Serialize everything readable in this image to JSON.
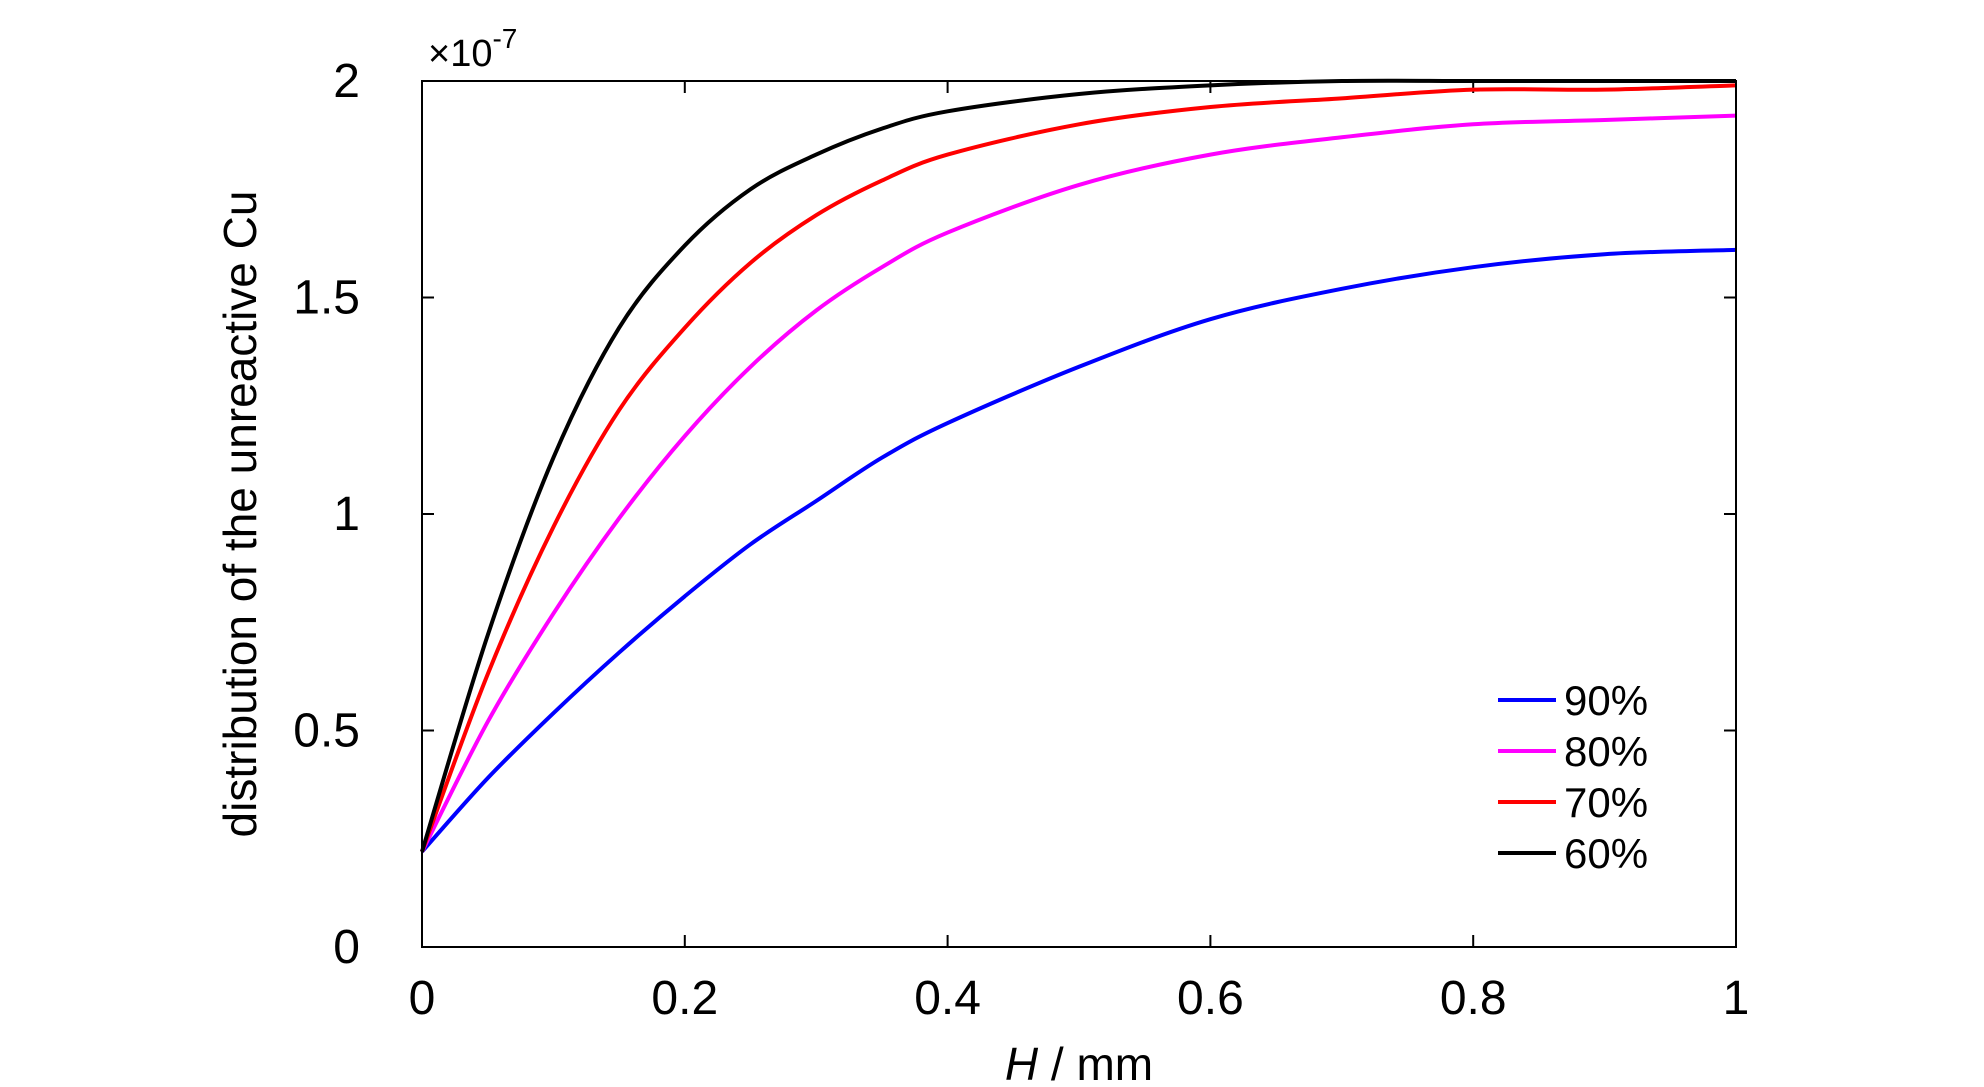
{
  "chart_data": {
    "type": "line",
    "xlabel_italic": "H",
    "xlabel_rest": " / mm",
    "ylabel": "distribution of the unreactive Cu",
    "exponent_prefix": "×10",
    "exponent_power": "-7",
    "xlim": [
      0,
      1
    ],
    "ylim": [
      0,
      2
    ],
    "xticks": [
      0,
      0.2,
      0.4,
      0.6,
      0.8,
      1
    ],
    "xtick_labels": [
      "0",
      "0.2",
      "0.4",
      "0.6",
      "0.8",
      "1"
    ],
    "yticks": [
      0,
      0.5,
      1,
      1.5,
      2
    ],
    "ytick_labels": [
      "0",
      "0.5",
      "1",
      "1.5",
      "2"
    ],
    "legend_position": "bottom-right",
    "x": [
      0,
      0.05,
      0.1,
      0.15,
      0.2,
      0.25,
      0.3,
      0.35,
      0.4,
      0.5,
      0.6,
      0.7,
      0.8,
      0.9,
      1.0
    ],
    "series": [
      {
        "name": "90%",
        "color": "#0000ff",
        "values": [
          0.22,
          0.39,
          0.54,
          0.68,
          0.81,
          0.93,
          1.03,
          1.13,
          1.21,
          1.34,
          1.45,
          1.52,
          1.57,
          1.6,
          1.61
        ]
      },
      {
        "name": "80%",
        "color": "#ff00ff",
        "values": [
          0.22,
          0.52,
          0.77,
          0.99,
          1.18,
          1.34,
          1.47,
          1.57,
          1.65,
          1.76,
          1.83,
          1.87,
          1.9,
          1.91,
          1.92
        ]
      },
      {
        "name": "70%",
        "color": "#ff0000",
        "values": [
          0.22,
          0.63,
          0.97,
          1.24,
          1.43,
          1.58,
          1.69,
          1.77,
          1.83,
          1.9,
          1.94,
          1.96,
          1.98,
          1.98,
          1.99
        ]
      },
      {
        "name": "60%",
        "color": "#000000",
        "values": [
          0.22,
          0.72,
          1.13,
          1.43,
          1.62,
          1.75,
          1.83,
          1.89,
          1.93,
          1.97,
          1.99,
          2.0,
          2.0,
          2.0,
          2.0
        ]
      }
    ]
  }
}
